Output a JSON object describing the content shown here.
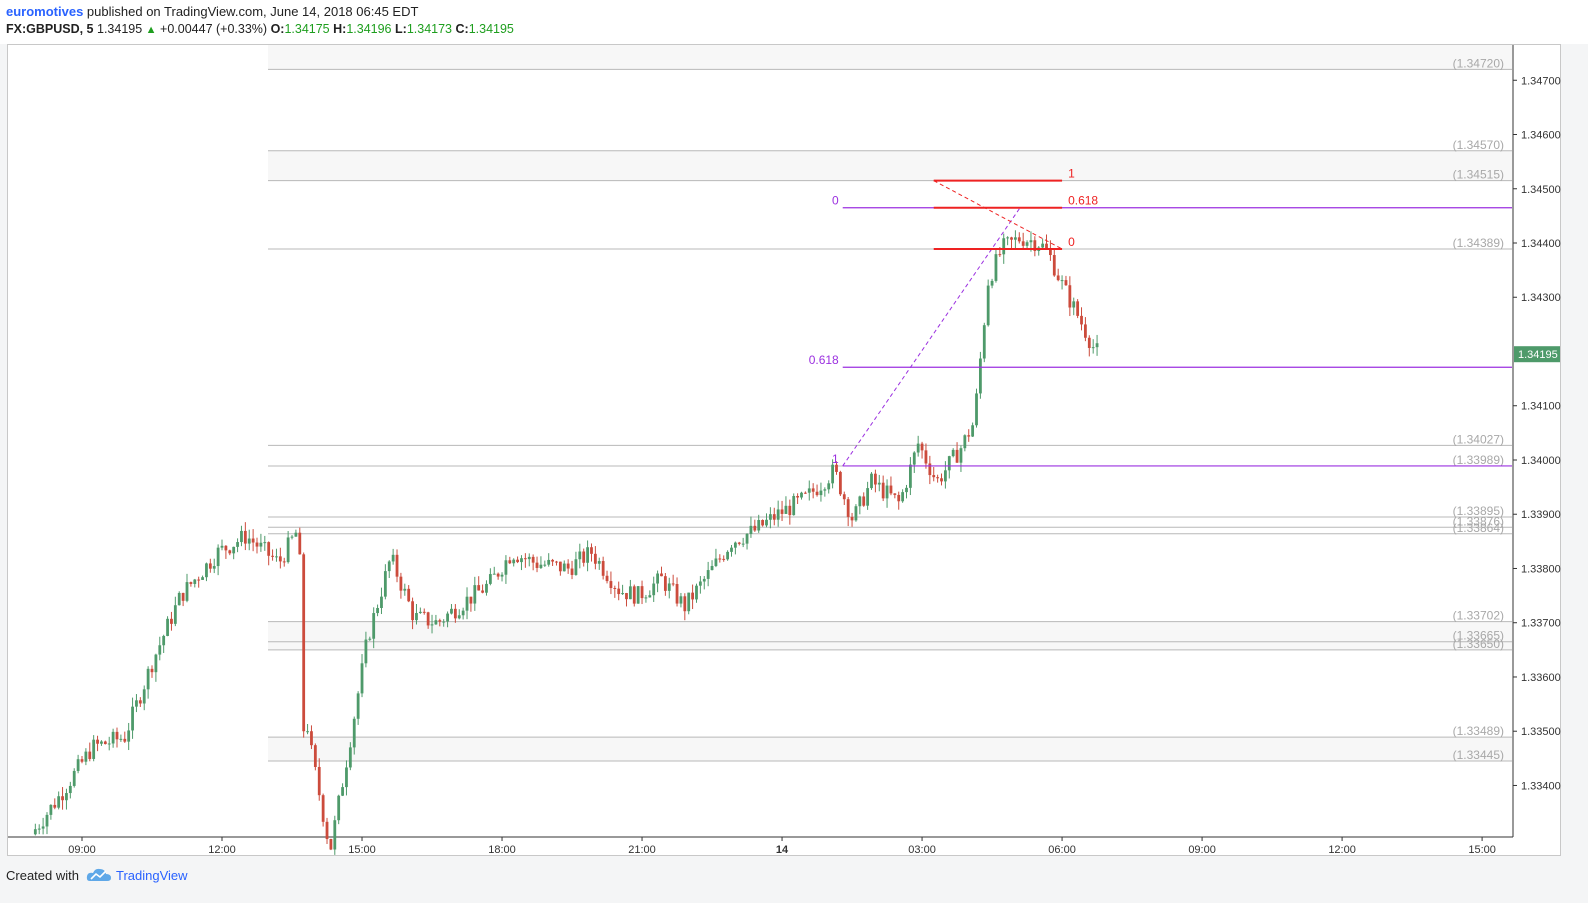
{
  "header": {
    "author": "euromotives",
    "published_text": " published on TradingView.com, June 14, 2018 06:45 EDT",
    "symbol": "FX:GBPUSD, 5",
    "last": "1.34195",
    "change": "+0.00447 (+0.33%)",
    "open_label": "O:",
    "open": "1.34175",
    "high_label": "H:",
    "high": "1.34196",
    "low_label": "L:",
    "low": "1.34173",
    "close_label": "C:",
    "close": "1.34195"
  },
  "footer": {
    "created_with": "Created with",
    "brand": "TradingView"
  },
  "colors": {
    "up": "#4e9a6a",
    "down": "#cc4b3c",
    "fib_red": "#ee2222",
    "fib_purple": "#9b30e0",
    "price_tag": "#4e9a6a",
    "level_line": "#b8b8b8",
    "level_text": "#a8a8a8"
  },
  "chart_data": {
    "type": "candlestick",
    "symbol": "FX:GBPUSD",
    "interval": "5",
    "ylim": [
      1.33305,
      1.34765
    ],
    "y_ticks": [
      "1.34700",
      "1.34600",
      "1.34500",
      "1.34400",
      "1.34300",
      "1.34100",
      "1.34000",
      "1.33900",
      "1.33800",
      "1.33700",
      "1.33600",
      "1.33500",
      "1.33400"
    ],
    "x_ticks": [
      {
        "label": "09:00",
        "hour": 9
      },
      {
        "label": "12:00",
        "hour": 12
      },
      {
        "label": "15:00",
        "hour": 15
      },
      {
        "label": "18:00",
        "hour": 18
      },
      {
        "label": "21:00",
        "hour": 21
      },
      {
        "label": "14",
        "hour": 24
      },
      {
        "label": "03:00",
        "hour": 27
      },
      {
        "label": "06:00",
        "hour": 30
      },
      {
        "label": "09:00",
        "hour": 33
      },
      {
        "label": "12:00",
        "hour": 36
      },
      {
        "label": "15:00",
        "hour": 39
      }
    ],
    "current_price": "1.34195",
    "levels": [
      {
        "value": 1.3472,
        "label": "(1.34720)"
      },
      {
        "value": 1.3457,
        "label": "(1.34570)"
      },
      {
        "value": 1.34515,
        "label": "(1.34515)"
      },
      {
        "value": 1.34389,
        "label": "(1.34389)"
      },
      {
        "value": 1.34027,
        "label": "(1.34027)"
      },
      {
        "value": 1.33989,
        "label": "(1.33989)"
      },
      {
        "value": 1.33895,
        "label": "(1.33895)"
      },
      {
        "value": 1.33876,
        "label": "(1.33876)"
      },
      {
        "value": 1.33864,
        "label": "(1.33864)"
      },
      {
        "value": 1.33702,
        "label": "(1.33702)"
      },
      {
        "value": 1.33665,
        "label": "(1.33665)"
      },
      {
        "value": 1.3365,
        "label": "(1.33650)"
      },
      {
        "value": 1.33489,
        "label": "(1.33489)"
      },
      {
        "value": 1.33445,
        "label": "(1.33445)"
      }
    ],
    "fib_purple": {
      "from": {
        "hour": 25.3,
        "price": 1.33989
      },
      "to": {
        "hour": 29.1,
        "price": 1.34465
      },
      "lines": [
        {
          "label": "0",
          "price": 1.34465
        },
        {
          "label": "0.618",
          "price": 1.34171
        },
        {
          "label": "1",
          "price": 1.33989
        }
      ]
    },
    "fib_red": {
      "from": {
        "hour": 27.25,
        "price": 1.34515
      },
      "to": {
        "hour": 30.0,
        "price": 1.34389
      },
      "lines": [
        {
          "label": "1",
          "price": 1.34515
        },
        {
          "label": "0.618",
          "price": 1.34465
        },
        {
          "label": "0",
          "price": 1.34389
        }
      ]
    },
    "path_hours": [
      8.0,
      8.6,
      9.3,
      10.0,
      10.6,
      11.2,
      12.0,
      12.6,
      13.3,
      13.7,
      13.8,
      14.0,
      14.4,
      14.8,
      15.2,
      15.7,
      16.2,
      16.7,
      17.3,
      17.8,
      18.3,
      18.8,
      19.5,
      20.0,
      20.6,
      21.0,
      21.5,
      22.0,
      22.6,
      23.0,
      23.5,
      24.0,
      24.6,
      25.2,
      25.6,
      26.0,
      26.6,
      27.0,
      27.4,
      27.9,
      28.2,
      28.5,
      28.8,
      29.2,
      29.6,
      29.8,
      30.1,
      30.4,
      30.8
    ],
    "path_prices": [
      1.3331,
      1.3338,
      1.3347,
      1.3349,
      1.3363,
      1.3375,
      1.3383,
      1.3386,
      1.3381,
      1.3387,
      1.3375,
      1.3346,
      1.3328,
      1.3347,
      1.3367,
      1.3382,
      1.3371,
      1.337,
      1.3374,
      1.3377,
      1.3383,
      1.3381,
      1.338,
      1.3383,
      1.3376,
      1.3375,
      1.3378,
      1.3373,
      1.338,
      1.3385,
      1.3387,
      1.339,
      1.3393,
      1.3398,
      1.3389,
      1.3396,
      1.3392,
      1.3403,
      1.3396,
      1.3402,
      1.3407,
      1.3433,
      1.3439,
      1.3441,
      1.344,
      1.3438,
      1.3432,
      1.3427,
      1.342
    ]
  }
}
